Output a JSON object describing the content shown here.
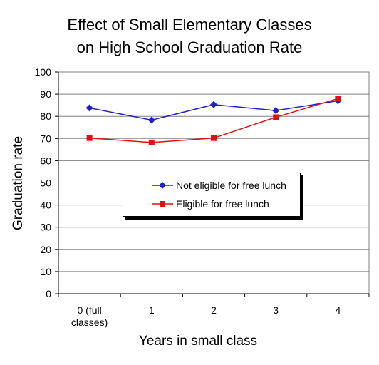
{
  "chart_data": {
    "type": "line",
    "title_lines": [
      "Effect of Small Elementary Classes",
      "on High School Graduation Rate"
    ],
    "xlabel": "Years in small class",
    "ylabel": "Graduation rate",
    "categories": [
      [
        "0 (full",
        "classes)"
      ],
      [
        "1"
      ],
      [
        "2"
      ],
      [
        "3"
      ],
      [
        "4"
      ]
    ],
    "ylim": [
      0,
      100
    ],
    "yticks": [
      0,
      10,
      20,
      30,
      40,
      50,
      60,
      70,
      80,
      90,
      100
    ],
    "grid": true,
    "legend_position": "center",
    "series": [
      {
        "name": "Not eligible for free lunch",
        "color": "#1f1fd0",
        "marker": "diamond",
        "values": [
          83.8,
          78.3,
          85.3,
          82.6,
          87.0
        ]
      },
      {
        "name": "Eligible for free lunch",
        "color": "#e01010",
        "marker": "square",
        "values": [
          70.2,
          68.2,
          70.2,
          79.6,
          88.0
        ]
      }
    ]
  }
}
